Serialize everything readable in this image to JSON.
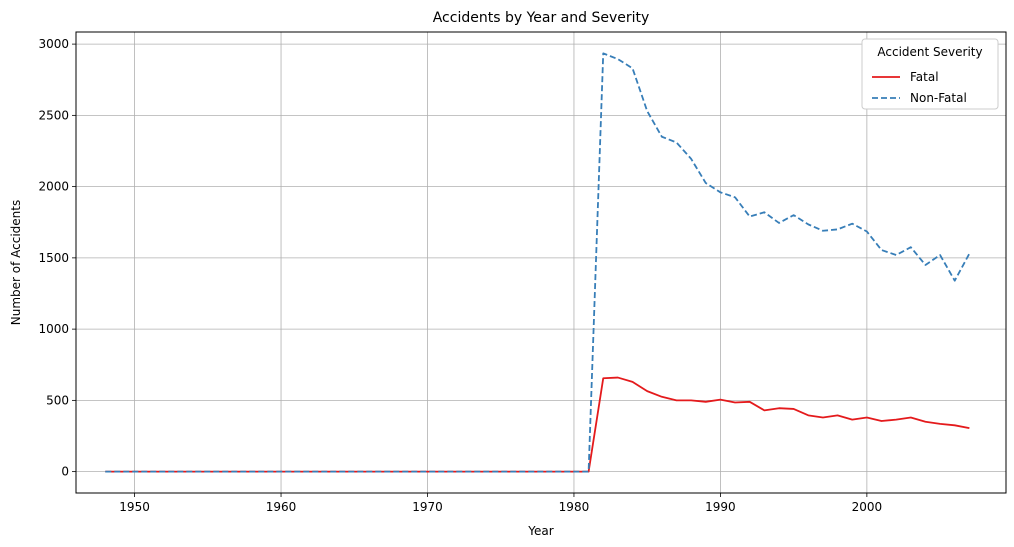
{
  "chart_data": {
    "type": "line",
    "title": "Accidents by Year and Severity",
    "xlabel": "Year",
    "ylabel": "Number of Accidents",
    "xlim": [
      1946,
      2009.5
    ],
    "ylim": [
      -150,
      3085
    ],
    "xticks": [
      1950,
      1960,
      1970,
      1980,
      1990,
      2000
    ],
    "yticks": [
      0,
      500,
      1000,
      1500,
      2000,
      2500,
      3000
    ],
    "grid": true,
    "legend": {
      "title": "Accident Severity",
      "placement": "top-right"
    },
    "x": [
      1948,
      1949,
      1950,
      1951,
      1952,
      1953,
      1954,
      1955,
      1956,
      1957,
      1958,
      1959,
      1960,
      1961,
      1962,
      1963,
      1964,
      1965,
      1966,
      1967,
      1968,
      1969,
      1970,
      1971,
      1972,
      1973,
      1974,
      1975,
      1976,
      1977,
      1978,
      1979,
      1980,
      1981,
      1982,
      1983,
      1984,
      1985,
      1986,
      1987,
      1988,
      1989,
      1990,
      1991,
      1992,
      1993,
      1994,
      1995,
      1996,
      1997,
      1998,
      1999,
      2000,
      2001,
      2002,
      2003,
      2004,
      2005,
      2006,
      2007
    ],
    "series": [
      {
        "name": "Fatal",
        "color": "#e41a1c",
        "style": "solid",
        "values": [
          0,
          0,
          0,
          0,
          0,
          0,
          0,
          0,
          0,
          0,
          0,
          0,
          0,
          0,
          0,
          0,
          0,
          0,
          0,
          0,
          0,
          0,
          0,
          0,
          0,
          0,
          0,
          0,
          0,
          0,
          0,
          0,
          0,
          0,
          655,
          660,
          630,
          565,
          525,
          500,
          500,
          490,
          505,
          485,
          490,
          430,
          445,
          440,
          395,
          380,
          395,
          365,
          380,
          355,
          365,
          380,
          350,
          335,
          325,
          305
        ]
      },
      {
        "name": "Non-Fatal",
        "color": "#377eb8",
        "style": "dashed",
        "values": [
          0,
          0,
          0,
          0,
          0,
          0,
          0,
          0,
          0,
          0,
          0,
          0,
          0,
          0,
          0,
          0,
          0,
          0,
          0,
          0,
          0,
          0,
          0,
          0,
          0,
          0,
          0,
          0,
          0,
          0,
          0,
          0,
          0,
          0,
          2935,
          2895,
          2830,
          2530,
          2350,
          2310,
          2195,
          2025,
          1960,
          1925,
          1790,
          1820,
          1745,
          1800,
          1735,
          1690,
          1700,
          1740,
          1685,
          1555,
          1520,
          1575,
          1450,
          1520,
          1340,
          1530
        ]
      }
    ]
  }
}
